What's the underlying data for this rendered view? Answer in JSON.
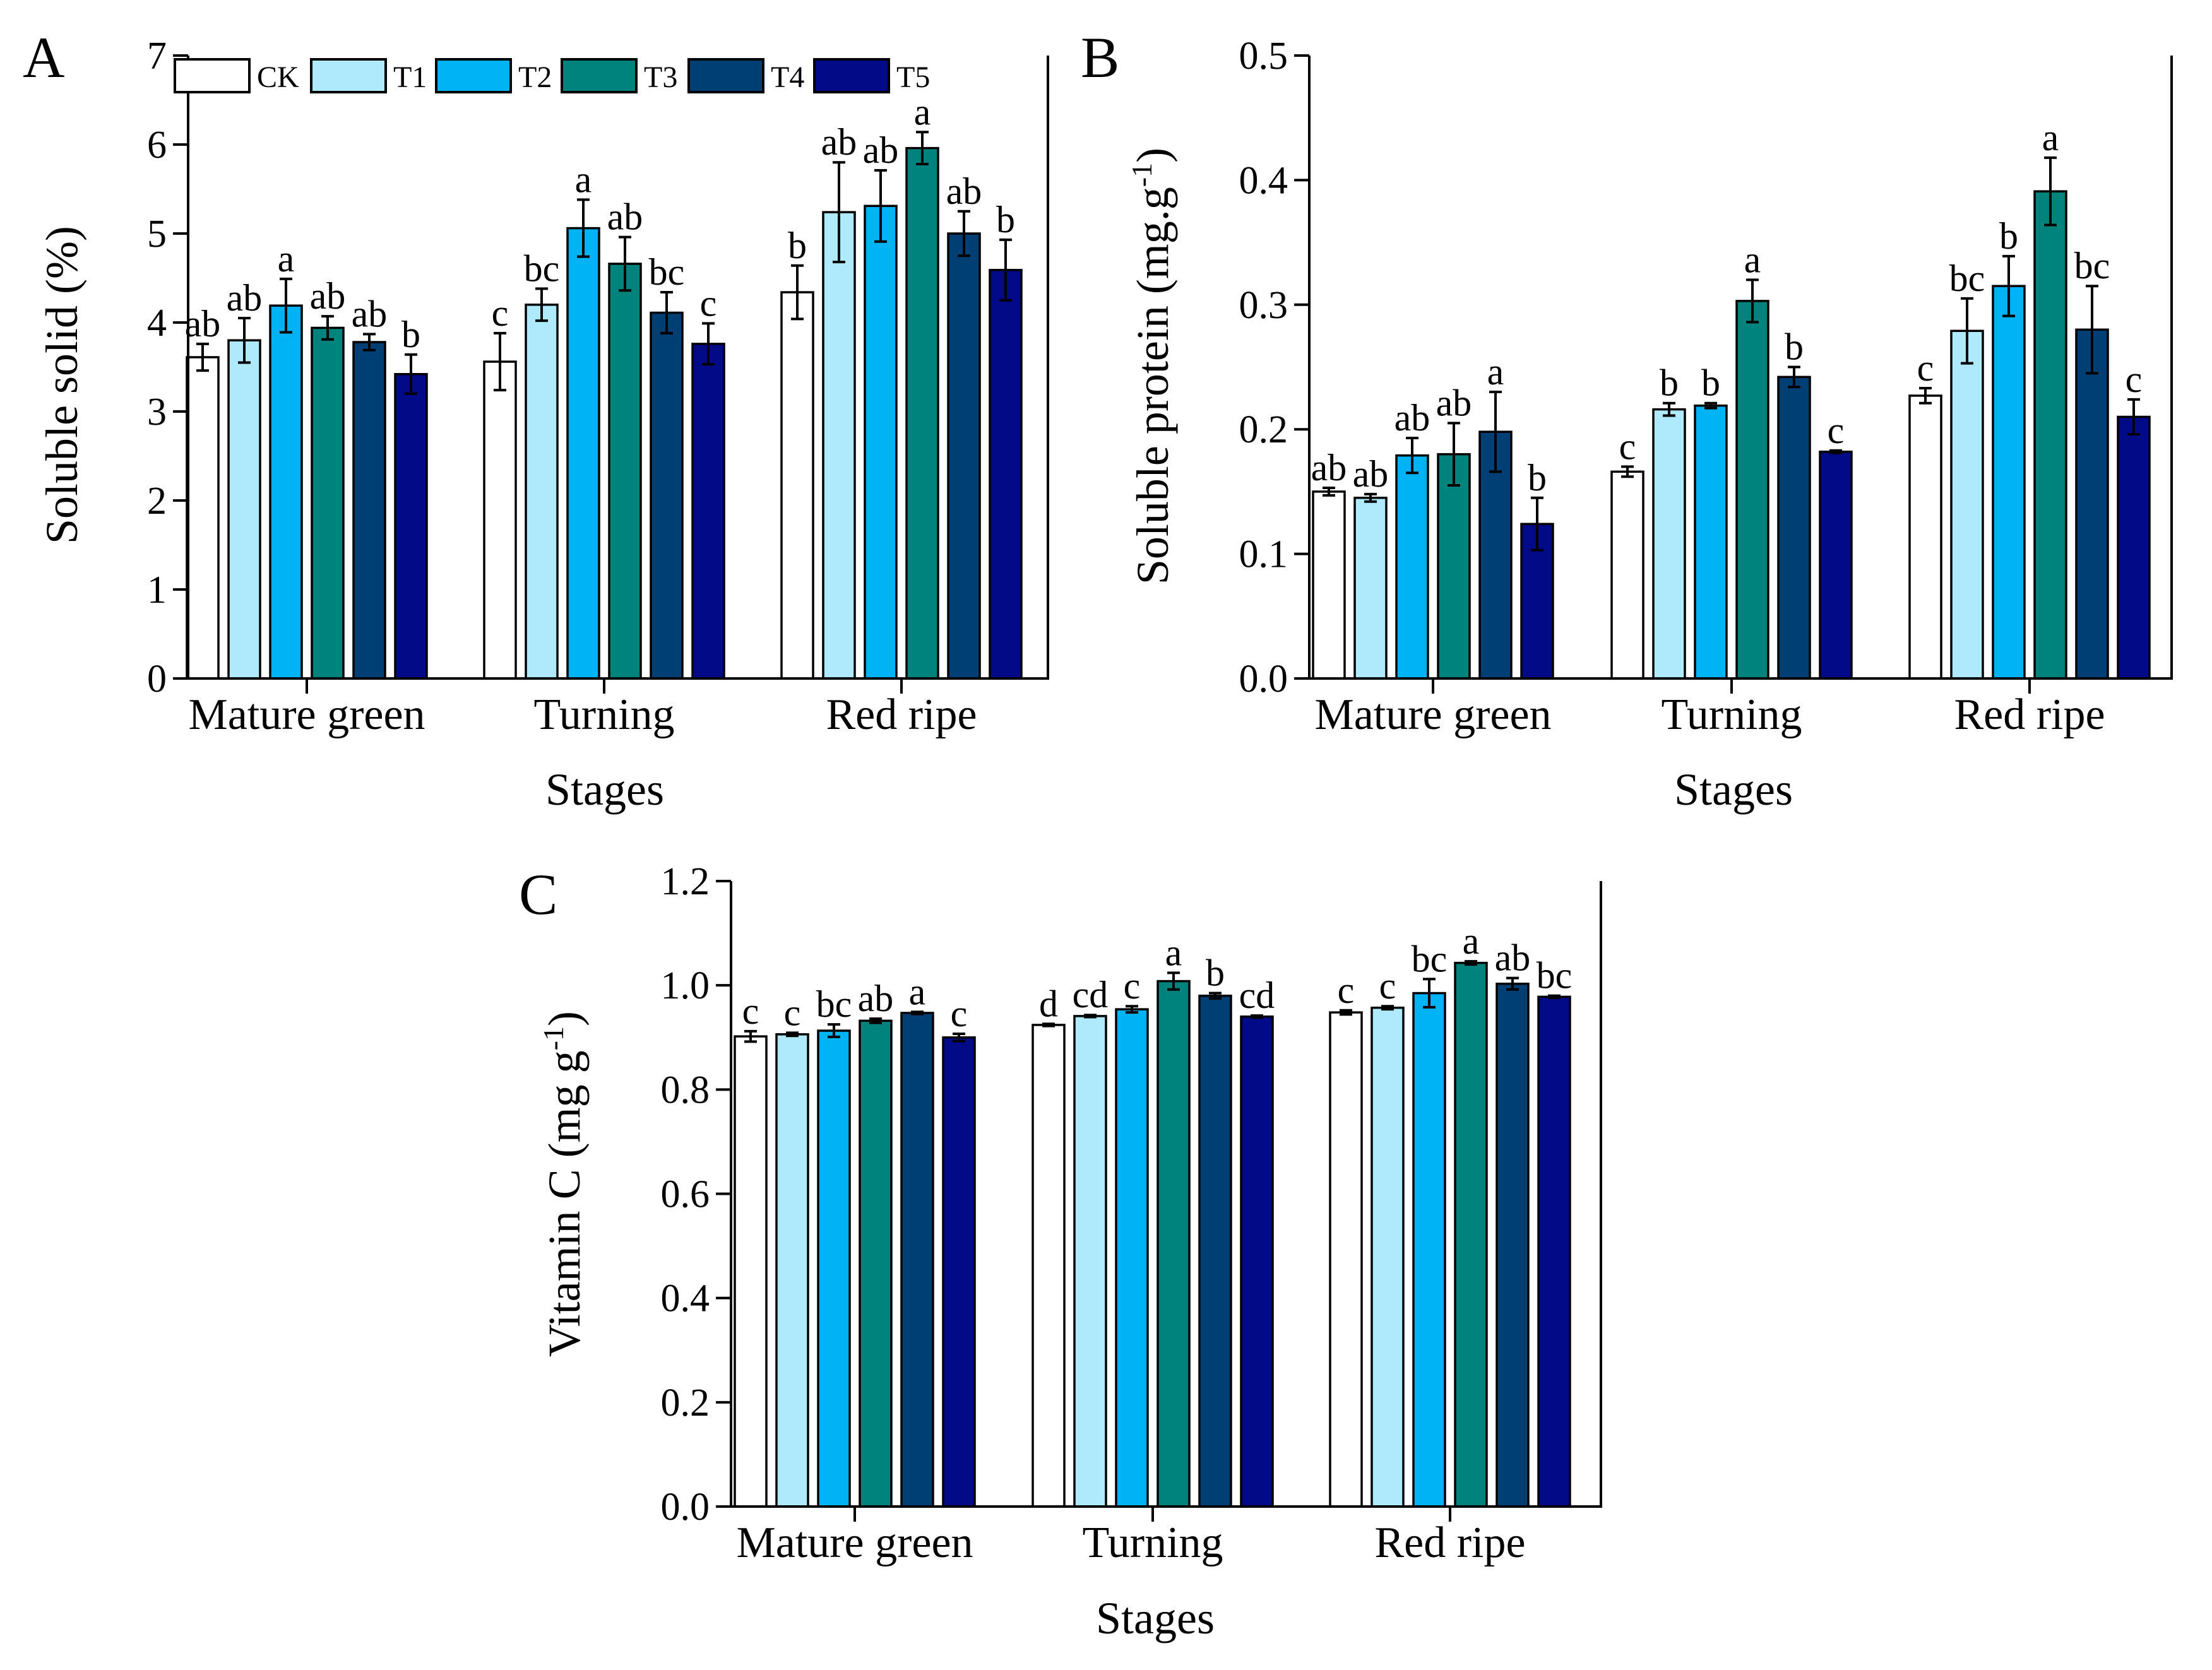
{
  "chart_data": [
    {
      "type": "bar",
      "panel": "A",
      "categories": [
        "Mature green",
        "Turning",
        "Red ripe"
      ],
      "xlabel": "Stages",
      "ylabel": "Soluble solid (%)",
      "ylim": [
        0,
        7
      ],
      "yticks": [
        "0",
        "1",
        "2",
        "3",
        "4",
        "5",
        "6",
        "7"
      ],
      "legend_position": "top-left",
      "series": [
        {
          "name": "CK",
          "values": [
            3.61,
            3.56,
            4.34
          ],
          "errors": [
            0.15,
            0.32,
            0.3
          ],
          "letters": [
            "ab",
            "c",
            "b"
          ]
        },
        {
          "name": "T1",
          "values": [
            3.8,
            4.2,
            5.24
          ],
          "errors": [
            0.25,
            0.18,
            0.56
          ],
          "letters": [
            "ab",
            "bc",
            "ab"
          ]
        },
        {
          "name": "T2",
          "values": [
            4.19,
            5.06,
            5.31
          ],
          "errors": [
            0.3,
            0.32,
            0.4
          ],
          "letters": [
            "a",
            "a",
            "ab"
          ]
        },
        {
          "name": "T3",
          "values": [
            3.94,
            4.66,
            5.96
          ],
          "errors": [
            0.13,
            0.3,
            0.18
          ],
          "letters": [
            "ab",
            "ab",
            "a"
          ]
        },
        {
          "name": "T4",
          "values": [
            3.78,
            4.11,
            5.0
          ],
          "errors": [
            0.09,
            0.23,
            0.25
          ],
          "letters": [
            "ab",
            "bc",
            "ab"
          ]
        },
        {
          "name": "T5",
          "values": [
            3.42,
            3.76,
            4.59
          ],
          "errors": [
            0.22,
            0.23,
            0.34
          ],
          "letters": [
            "b",
            "c",
            "b"
          ]
        }
      ]
    },
    {
      "type": "bar",
      "panel": "B",
      "categories": [
        "Mature green",
        "Turning",
        "Red ripe"
      ],
      "xlabel": "Stages",
      "ylabel_main": "Soluble protein (mg.g",
      "ylabel_sup": "-1",
      "ylabel_end": ")",
      "ylim": [
        0,
        0.5
      ],
      "yticks": [
        "0.0",
        "0.1",
        "0.2",
        "0.3",
        "0.4",
        "0.5"
      ],
      "series": [
        {
          "name": "CK",
          "values": [
            0.15,
            0.166,
            0.227
          ],
          "errors": [
            0.003,
            0.004,
            0.006
          ],
          "letters": [
            "ab",
            "c",
            "c"
          ]
        },
        {
          "name": "T1",
          "values": [
            0.145,
            0.216,
            0.279
          ],
          "errors": [
            0.003,
            0.005,
            0.026
          ],
          "letters": [
            "ab",
            "b",
            "bc"
          ]
        },
        {
          "name": "T2",
          "values": [
            0.179,
            0.219,
            0.315
          ],
          "errors": [
            0.014,
            0.002,
            0.024
          ],
          "letters": [
            "ab",
            "b",
            "b"
          ]
        },
        {
          "name": "T3",
          "values": [
            0.18,
            0.303,
            0.391
          ],
          "errors": [
            0.025,
            0.017,
            0.027
          ],
          "letters": [
            "ab",
            "a",
            "a"
          ]
        },
        {
          "name": "T4",
          "values": [
            0.198,
            0.242,
            0.28
          ],
          "errors": [
            0.032,
            0.008,
            0.035
          ],
          "letters": [
            "a",
            "b",
            "bc"
          ]
        },
        {
          "name": "T5",
          "values": [
            0.124,
            0.182,
            0.21
          ],
          "errors": [
            0.021,
            0.001,
            0.014
          ],
          "letters": [
            "b",
            "c",
            "c"
          ]
        }
      ]
    },
    {
      "type": "bar",
      "panel": "C",
      "categories": [
        "Mature green",
        "Turning",
        "Red ripe"
      ],
      "xlabel": "Stages",
      "ylabel_main": "Vitamin C (mg g",
      "ylabel_sup": "-1",
      "ylabel_end": ")",
      "ylim": [
        0,
        1.2
      ],
      "yticks": [
        "0.0",
        "0.2",
        "0.4",
        "0.6",
        "0.8",
        "1.0",
        "1.2"
      ],
      "series": [
        {
          "name": "CK",
          "values": [
            0.902,
            0.924,
            0.948
          ],
          "errors": [
            0.01,
            0.002,
            0.004
          ],
          "letters": [
            "c",
            "d",
            "c"
          ]
        },
        {
          "name": "T1",
          "values": [
            0.906,
            0.941,
            0.957
          ],
          "errors": [
            0.003,
            0.002,
            0.003
          ],
          "letters": [
            "c",
            "cd",
            "c"
          ]
        },
        {
          "name": "T2",
          "values": [
            0.913,
            0.954,
            0.985
          ],
          "errors": [
            0.012,
            0.006,
            0.027
          ],
          "letters": [
            "bc",
            "c",
            "bc"
          ]
        },
        {
          "name": "T3",
          "values": [
            0.932,
            1.008,
            1.043
          ],
          "errors": [
            0.004,
            0.016,
            0.003
          ],
          "letters": [
            "ab",
            "a",
            "a"
          ]
        },
        {
          "name": "T4",
          "values": [
            0.947,
            0.98,
            1.003
          ],
          "errors": [
            0.002,
            0.005,
            0.011
          ],
          "letters": [
            "a",
            "b",
            "ab"
          ]
        },
        {
          "name": "T5",
          "values": [
            0.9,
            0.94,
            0.978
          ],
          "errors": [
            0.007,
            0.002,
            0.002
          ],
          "letters": [
            "c",
            "cd",
            "bc"
          ]
        }
      ]
    }
  ],
  "legend": [
    "CK",
    "T1",
    "T2",
    "T3",
    "T4",
    "T5"
  ],
  "colors": {
    "CK": "#ffffff",
    "T1": "#aeeafc",
    "T2": "#00b3f4",
    "T3": "#00837c",
    "T4": "#003f74",
    "T5": "#020a87",
    "axis": "#000000"
  }
}
